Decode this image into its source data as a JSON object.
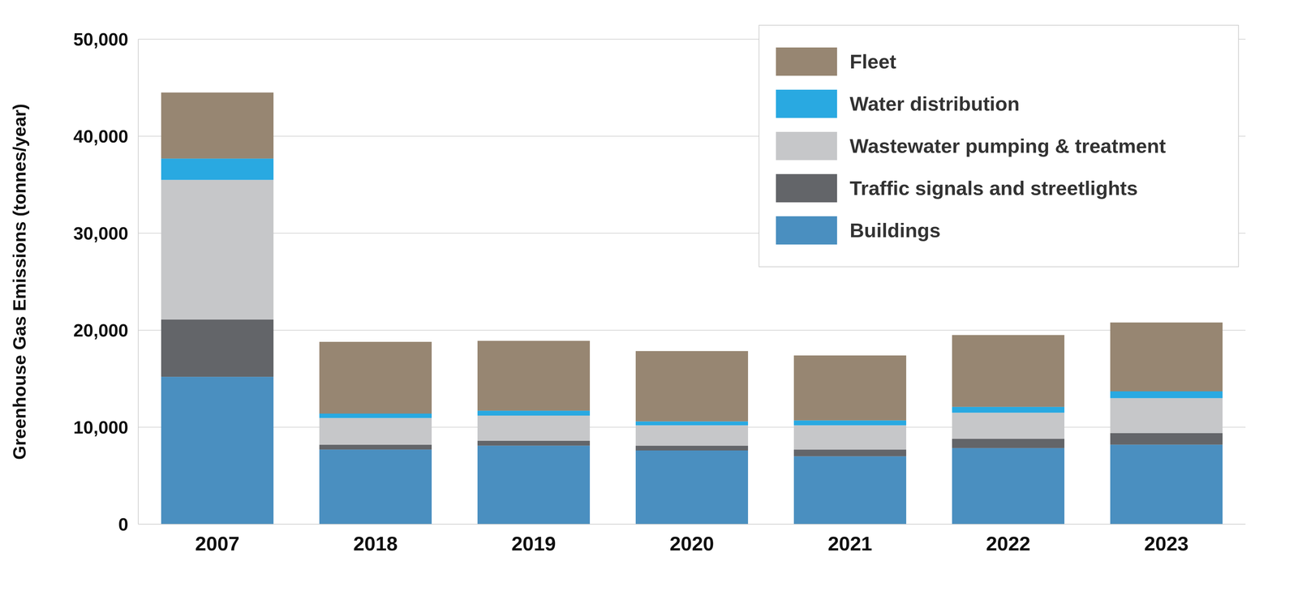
{
  "chart_data": {
    "type": "bar",
    "y_label": "Greenhouse Gas Emissions (tonnes/year)",
    "categories": [
      "2007",
      "2018",
      "2019",
      "2020",
      "2021",
      "2022",
      "2023"
    ],
    "stacked": true,
    "grid": true,
    "legend": "top-right",
    "ylim": [
      0,
      50000
    ],
    "yticks": [
      0,
      {
        "value": 10000,
        "label": "10,000"
      },
      {
        "value": 20000,
        "label": "20,000"
      },
      {
        "value": 30000,
        "label": "30,000"
      },
      {
        "value": 40000,
        "label": "40,000"
      },
      {
        "value": 50000,
        "label": "50,000"
      }
    ],
    "series": [
      {
        "name": "Buildings",
        "color": "#4a8fc0",
        "values": [
          15200,
          7700,
          8100,
          7600,
          7000,
          7850,
          8200
        ]
      },
      {
        "name": "Traffic signals and streetlights",
        "color": "#636569",
        "values": [
          5900,
          500,
          500,
          500,
          700,
          950,
          1200
        ]
      },
      {
        "name": "Wastewater pumping & treatment",
        "color": "#c6c7c9",
        "values": [
          14400,
          2750,
          2600,
          2100,
          2500,
          2700,
          3600
        ]
      },
      {
        "name": "Water distribution",
        "color": "#29a9e1",
        "values": [
          2200,
          450,
          500,
          400,
          500,
          600,
          700
        ]
      },
      {
        "name": "Fleet",
        "color": "#978672",
        "values": [
          6800,
          7400,
          7200,
          7250,
          6700,
          7400,
          7100
        ]
      }
    ]
  }
}
